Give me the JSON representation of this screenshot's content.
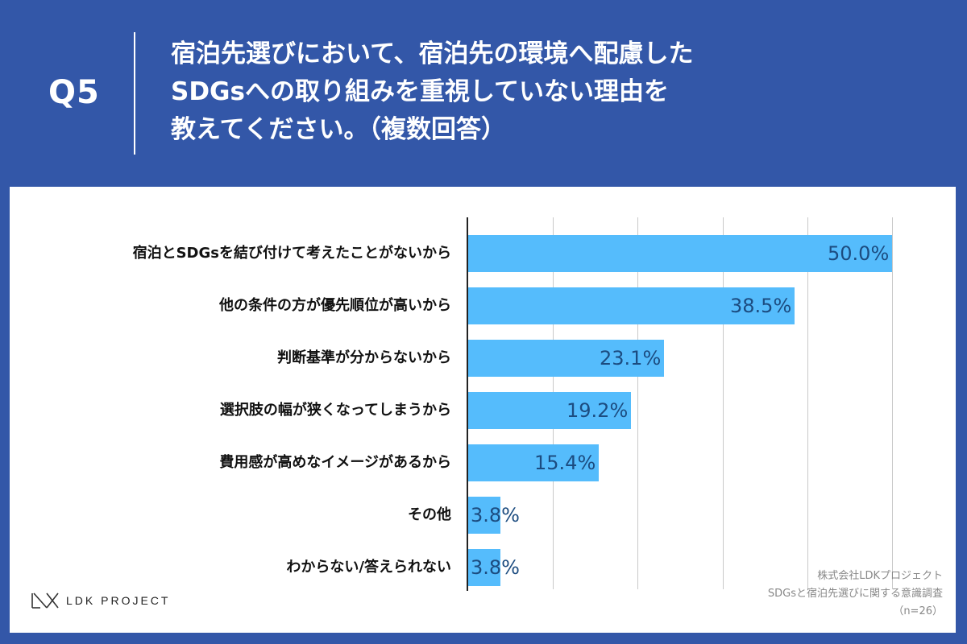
{
  "header": {
    "q_label": "Q5",
    "question_lines": [
      "宿泊先選びにおいて、宿泊先の環境へ配慮した",
      "SDGsへの取り組みを重視していない理由を",
      "教えてください。（複数回答）"
    ]
  },
  "chart_data": {
    "type": "bar",
    "orientation": "horizontal",
    "categories": [
      "宿泊とSDGsを結び付けて考えたことがないから",
      "他の条件の方が優先順位が高いから",
      "判断基準が分からないから",
      "選択肢の幅が狭くなってしまうから",
      "費用感が高めなイメージがあるから",
      "その他",
      "わからない/答えられない"
    ],
    "values": [
      50.0,
      38.5,
      23.1,
      19.2,
      15.4,
      3.8,
      3.8
    ],
    "value_labels": [
      "50.0%",
      "38.5%",
      "23.1%",
      "19.2%",
      "15.4%",
      "3.8%",
      "3.8%"
    ],
    "xlim": [
      0,
      50
    ],
    "grid": true,
    "bar_color": "#55bcfc",
    "value_label_color": "#1c4c80"
  },
  "footer": {
    "logo_text": "LDK PROJECT",
    "source_lines": [
      "株式会社LDKプロジェクト",
      "SDGsと宿泊先選びに関する意識調査",
      "（n=26）"
    ]
  },
  "colors": {
    "background": "#3357a8",
    "panel": "#ffffff"
  }
}
